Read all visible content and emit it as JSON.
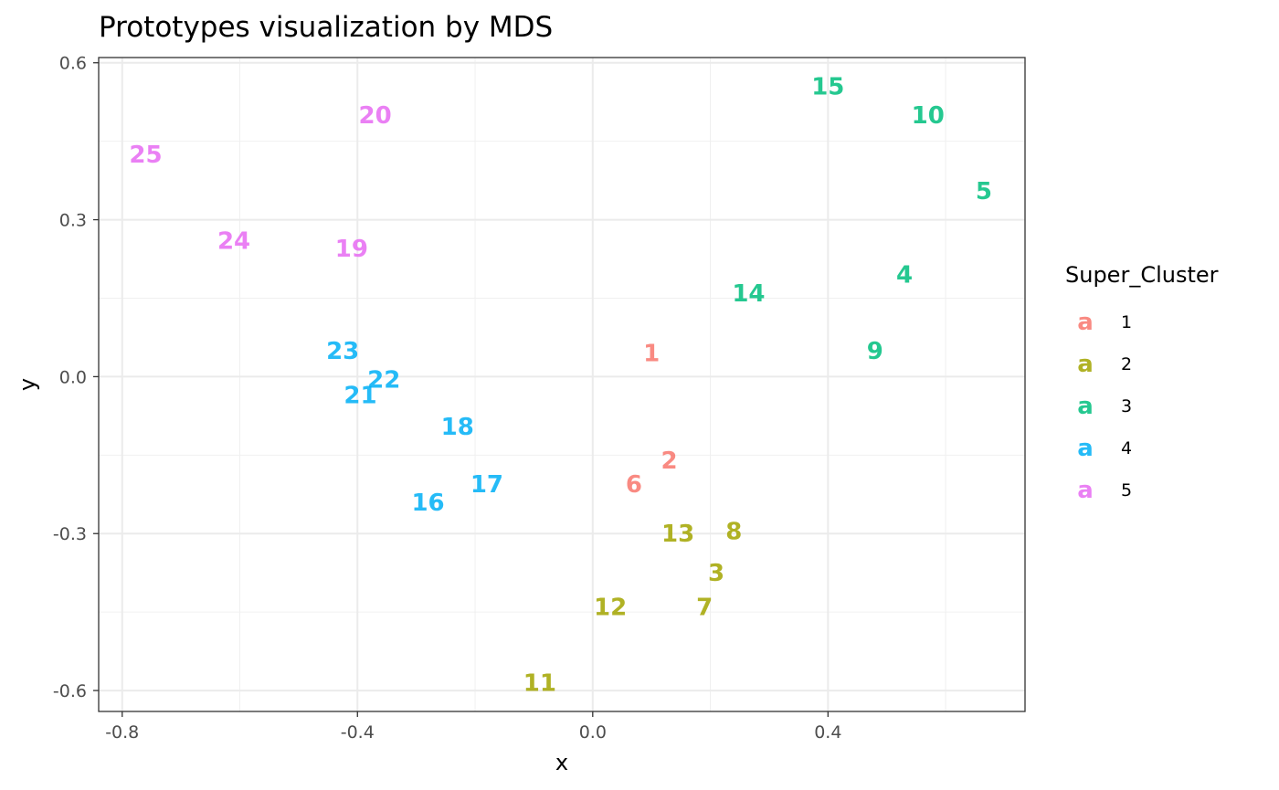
{
  "chart_data": {
    "type": "scatter",
    "title": "Prototypes visualization by MDS",
    "xlabel": "x",
    "ylabel": "y",
    "xlim": [
      -0.84,
      0.735
    ],
    "ylim": [
      -0.64,
      0.61
    ],
    "x_ticks": [
      -0.8,
      -0.4,
      0.0,
      0.4
    ],
    "x_tick_labels": [
      "-0.8",
      "-0.4",
      "0.0",
      "0.4"
    ],
    "y_ticks": [
      -0.6,
      -0.3,
      0.0,
      0.3,
      0.6
    ],
    "y_tick_labels": [
      "-0.6",
      "-0.3",
      "0.0",
      "0.3",
      "0.6"
    ],
    "grid": true,
    "legend": {
      "title": "Super_Cluster",
      "placement": "right",
      "key_glyph": "a",
      "entries": [
        {
          "label": "1",
          "color": "#F8766D"
        },
        {
          "label": "2",
          "color": "#A3A500"
        },
        {
          "label": "3",
          "color": "#00BF7D"
        },
        {
          "label": "4",
          "color": "#00B0F6"
        },
        {
          "label": "5",
          "color": "#E76BF3"
        }
      ]
    },
    "points": [
      {
        "label": "1",
        "x": 0.1,
        "y": 0.045,
        "cluster": "1"
      },
      {
        "label": "2",
        "x": 0.13,
        "y": -0.16,
        "cluster": "1"
      },
      {
        "label": "6",
        "x": 0.07,
        "y": -0.205,
        "cluster": "1"
      },
      {
        "label": "3",
        "x": 0.21,
        "y": -0.375,
        "cluster": "2"
      },
      {
        "label": "7",
        "x": 0.19,
        "y": -0.44,
        "cluster": "2"
      },
      {
        "label": "8",
        "x": 0.24,
        "y": -0.295,
        "cluster": "2"
      },
      {
        "label": "11",
        "x": -0.09,
        "y": -0.585,
        "cluster": "2"
      },
      {
        "label": "12",
        "x": 0.03,
        "y": -0.44,
        "cluster": "2"
      },
      {
        "label": "13",
        "x": 0.145,
        "y": -0.3,
        "cluster": "2"
      },
      {
        "label": "4",
        "x": 0.53,
        "y": 0.195,
        "cluster": "3"
      },
      {
        "label": "5",
        "x": 0.665,
        "y": 0.355,
        "cluster": "3"
      },
      {
        "label": "9",
        "x": 0.48,
        "y": 0.05,
        "cluster": "3"
      },
      {
        "label": "10",
        "x": 0.57,
        "y": 0.5,
        "cluster": "3"
      },
      {
        "label": "14",
        "x": 0.265,
        "y": 0.16,
        "cluster": "3"
      },
      {
        "label": "15",
        "x": 0.4,
        "y": 0.555,
        "cluster": "3"
      },
      {
        "label": "16",
        "x": -0.28,
        "y": -0.24,
        "cluster": "4"
      },
      {
        "label": "17",
        "x": -0.18,
        "y": -0.205,
        "cluster": "4"
      },
      {
        "label": "18",
        "x": -0.23,
        "y": -0.095,
        "cluster": "4"
      },
      {
        "label": "21",
        "x": -0.395,
        "y": -0.035,
        "cluster": "4"
      },
      {
        "label": "22",
        "x": -0.355,
        "y": -0.005,
        "cluster": "4"
      },
      {
        "label": "23",
        "x": -0.425,
        "y": 0.05,
        "cluster": "4"
      },
      {
        "label": "19",
        "x": -0.41,
        "y": 0.245,
        "cluster": "5"
      },
      {
        "label": "20",
        "x": -0.37,
        "y": 0.5,
        "cluster": "5"
      },
      {
        "label": "24",
        "x": -0.61,
        "y": 0.26,
        "cluster": "5"
      },
      {
        "label": "25",
        "x": -0.76,
        "y": 0.425,
        "cluster": "5"
      }
    ]
  }
}
